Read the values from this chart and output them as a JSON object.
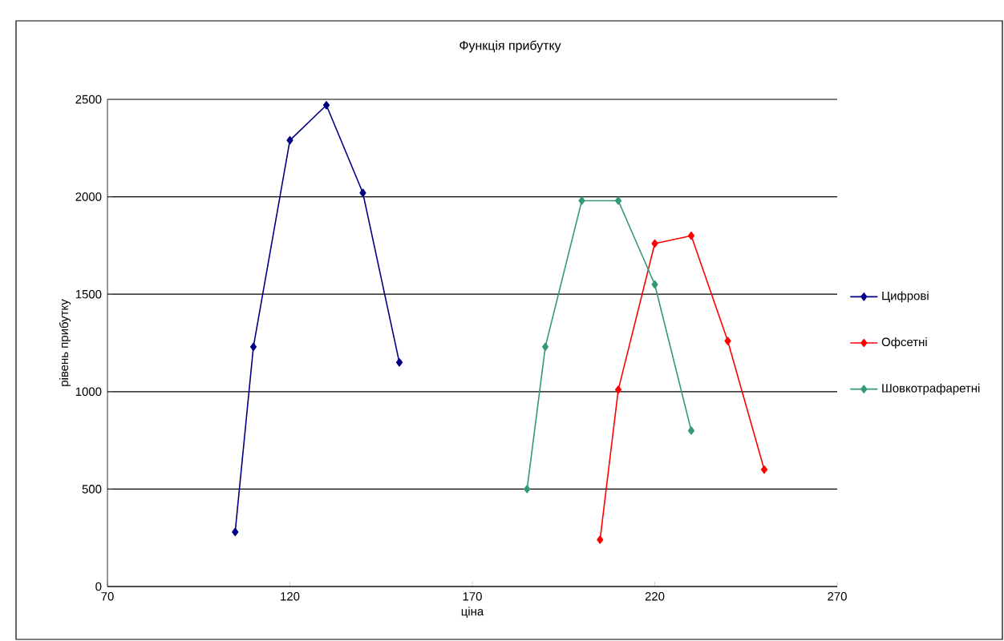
{
  "chart_data": {
    "type": "line",
    "title": "Функція прибутку",
    "xlabel": "ціна",
    "ylabel": "рівень прибутку",
    "xlim": [
      70,
      270
    ],
    "xticks": [
      70,
      120,
      170,
      220,
      270
    ],
    "ylim": [
      0,
      2500
    ],
    "yticks": [
      0,
      500,
      1000,
      1500,
      2000,
      2500
    ],
    "grid": "y",
    "legend": "right",
    "marker": "diamond",
    "line_style": "solid",
    "series": [
      {
        "name": "Цифрові",
        "color": "#000080",
        "x": [
          105,
          110,
          120,
          130,
          140,
          150
        ],
        "values": [
          280,
          1230,
          2290,
          2470,
          2020,
          1150
        ]
      },
      {
        "name": "Офсетні",
        "color": "#ff0000",
        "x": [
          205,
          210,
          220,
          230,
          240,
          250
        ],
        "values": [
          240,
          1010,
          1760,
          1800,
          1260,
          600
        ]
      },
      {
        "name": "Шовкотрафаретні",
        "color": "#339977",
        "x": [
          185,
          190,
          200,
          210,
          220,
          230
        ],
        "values": [
          500,
          1230,
          1980,
          1980,
          1550,
          800
        ]
      }
    ]
  }
}
